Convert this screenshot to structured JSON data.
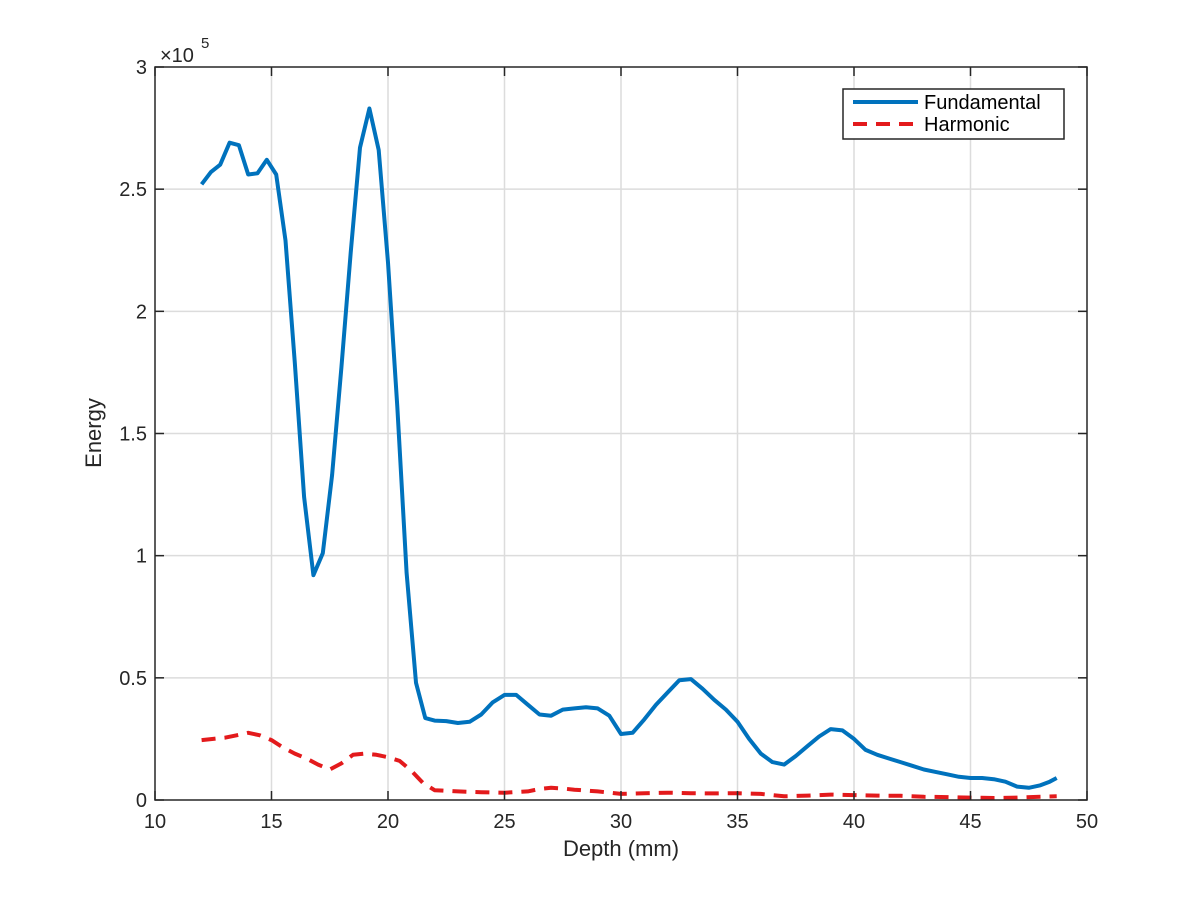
{
  "chart_data": {
    "type": "line",
    "title": "",
    "xlabel": "Depth (mm)",
    "ylabel": "Energy",
    "y_multiplier_label": {
      "base": "×10",
      "exponent": "5"
    },
    "xlim": [
      10,
      50
    ],
    "ylim": [
      0,
      3
    ],
    "x_ticks": [
      10,
      15,
      20,
      25,
      30,
      35,
      40,
      45,
      50
    ],
    "x_tick_labels": [
      "10",
      "15",
      "20",
      "25",
      "30",
      "35",
      "40",
      "45",
      "50"
    ],
    "y_ticks": [
      0,
      0.5,
      1,
      1.5,
      2,
      2.5,
      3
    ],
    "y_tick_labels": [
      "0",
      "0.5",
      "1",
      "1.5",
      "2",
      "2.5",
      "3"
    ],
    "grid": true,
    "legend_position": "top-right",
    "series": [
      {
        "name": "Fundamental",
        "color": "#0072bd",
        "style": "solid",
        "points": [
          [
            12.0,
            2.52
          ],
          [
            12.4,
            2.57
          ],
          [
            12.8,
            2.6
          ],
          [
            13.2,
            2.69
          ],
          [
            13.6,
            2.68
          ],
          [
            14.0,
            2.56
          ],
          [
            14.4,
            2.565
          ],
          [
            14.8,
            2.62
          ],
          [
            15.2,
            2.56
          ],
          [
            15.6,
            2.29
          ],
          [
            16.0,
            1.79
          ],
          [
            16.4,
            1.24
          ],
          [
            16.8,
            0.92
          ],
          [
            17.2,
            1.01
          ],
          [
            17.6,
            1.33
          ],
          [
            18.0,
            1.77
          ],
          [
            18.4,
            2.24
          ],
          [
            18.8,
            2.67
          ],
          [
            19.2,
            2.83
          ],
          [
            19.6,
            2.66
          ],
          [
            20.0,
            2.2
          ],
          [
            20.4,
            1.61
          ],
          [
            20.8,
            0.93
          ],
          [
            21.2,
            0.48
          ],
          [
            21.6,
            0.335
          ],
          [
            22.0,
            0.325
          ],
          [
            22.5,
            0.323
          ],
          [
            23.0,
            0.315
          ],
          [
            23.5,
            0.32
          ],
          [
            24.0,
            0.35
          ],
          [
            24.5,
            0.4
          ],
          [
            25.0,
            0.43
          ],
          [
            25.5,
            0.43
          ],
          [
            26.0,
            0.39
          ],
          [
            26.5,
            0.35
          ],
          [
            27.0,
            0.345
          ],
          [
            27.5,
            0.37
          ],
          [
            28.0,
            0.375
          ],
          [
            28.5,
            0.38
          ],
          [
            29.0,
            0.375
          ],
          [
            29.5,
            0.345
          ],
          [
            30.0,
            0.27
          ],
          [
            30.5,
            0.275
          ],
          [
            31.0,
            0.33
          ],
          [
            31.5,
            0.39
          ],
          [
            32.0,
            0.44
          ],
          [
            32.5,
            0.49
          ],
          [
            33.0,
            0.495
          ],
          [
            33.5,
            0.455
          ],
          [
            34.0,
            0.41
          ],
          [
            34.5,
            0.37
          ],
          [
            35.0,
            0.32
          ],
          [
            35.5,
            0.25
          ],
          [
            36.0,
            0.19
          ],
          [
            36.5,
            0.155
          ],
          [
            37.0,
            0.145
          ],
          [
            37.5,
            0.18
          ],
          [
            38.0,
            0.22
          ],
          [
            38.5,
            0.26
          ],
          [
            39.0,
            0.29
          ],
          [
            39.5,
            0.285
          ],
          [
            40.0,
            0.25
          ],
          [
            40.5,
            0.205
          ],
          [
            41.0,
            0.185
          ],
          [
            41.5,
            0.17
          ],
          [
            42.0,
            0.155
          ],
          [
            42.5,
            0.14
          ],
          [
            43.0,
            0.125
          ],
          [
            43.5,
            0.115
          ],
          [
            44.0,
            0.105
          ],
          [
            44.5,
            0.095
          ],
          [
            45.0,
            0.09
          ],
          [
            45.5,
            0.09
          ],
          [
            46.0,
            0.085
          ],
          [
            46.5,
            0.075
          ],
          [
            47.0,
            0.055
          ],
          [
            47.5,
            0.05
          ],
          [
            48.0,
            0.06
          ],
          [
            48.4,
            0.075
          ],
          [
            48.7,
            0.09
          ]
        ]
      },
      {
        "name": "Harmonic",
        "color": "#e31a1c",
        "style": "dashed",
        "points": [
          [
            12.0,
            0.245
          ],
          [
            12.5,
            0.25
          ],
          [
            13.0,
            0.255
          ],
          [
            13.5,
            0.265
          ],
          [
            14.0,
            0.275
          ],
          [
            14.5,
            0.265
          ],
          [
            15.0,
            0.245
          ],
          [
            15.5,
            0.215
          ],
          [
            16.0,
            0.19
          ],
          [
            16.5,
            0.17
          ],
          [
            17.0,
            0.145
          ],
          [
            17.5,
            0.125
          ],
          [
            18.0,
            0.15
          ],
          [
            18.5,
            0.185
          ],
          [
            19.0,
            0.19
          ],
          [
            19.5,
            0.185
          ],
          [
            20.0,
            0.175
          ],
          [
            20.5,
            0.16
          ],
          [
            21.0,
            0.12
          ],
          [
            21.5,
            0.07
          ],
          [
            22.0,
            0.04
          ],
          [
            23.0,
            0.035
          ],
          [
            24.0,
            0.032
          ],
          [
            25.0,
            0.03
          ],
          [
            26.0,
            0.035
          ],
          [
            26.5,
            0.045
          ],
          [
            27.0,
            0.05
          ],
          [
            27.5,
            0.047
          ],
          [
            28.0,
            0.042
          ],
          [
            29.0,
            0.035
          ],
          [
            30.0,
            0.025
          ],
          [
            31.0,
            0.028
          ],
          [
            32.0,
            0.03
          ],
          [
            33.0,
            0.028
          ],
          [
            34.0,
            0.027
          ],
          [
            35.0,
            0.028
          ],
          [
            36.0,
            0.025
          ],
          [
            37.0,
            0.015
          ],
          [
            38.0,
            0.018
          ],
          [
            39.0,
            0.022
          ],
          [
            40.0,
            0.02
          ],
          [
            41.0,
            0.018
          ],
          [
            42.0,
            0.017
          ],
          [
            43.0,
            0.013
          ],
          [
            44.0,
            0.012
          ],
          [
            45.0,
            0.01
          ],
          [
            46.0,
            0.008
          ],
          [
            47.0,
            0.01
          ],
          [
            48.0,
            0.013
          ],
          [
            48.7,
            0.015
          ]
        ]
      }
    ]
  }
}
